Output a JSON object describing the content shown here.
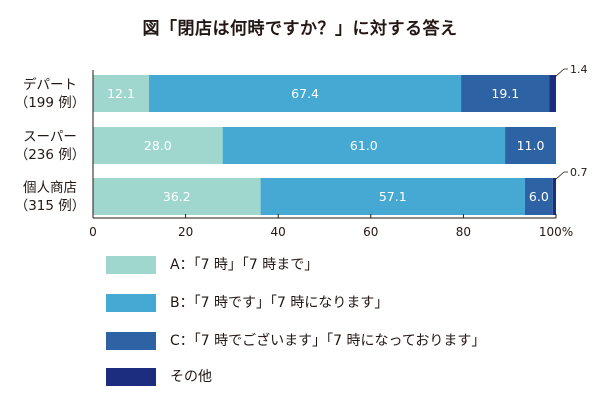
{
  "chart_data": {
    "type": "bar",
    "orientation": "horizontal",
    "stacked": true,
    "title": "図「閉店は何時ですか？」に対する答え",
    "categories": [
      {
        "name": "デパート",
        "n": "（199 例）"
      },
      {
        "name": "スーパー",
        "n": "（236 例）"
      },
      {
        "name": "個人商店",
        "n": "（315 例）"
      }
    ],
    "series": [
      {
        "name": "A：「7 時」「7 時まで」",
        "color": "#9fd7cf",
        "values": [
          12.1,
          28.0,
          36.2
        ],
        "labels": [
          "12.1",
          "28.0",
          "36.2"
        ]
      },
      {
        "name": "B：「7 時です」「7 時になります」",
        "color": "#45a9d4",
        "values": [
          67.4,
          61.0,
          57.1
        ],
        "labels": [
          "67.4",
          "61.0",
          "57.1"
        ]
      },
      {
        "name": "C：「7 時でございます」「7 時になっております」",
        "color": "#2d62a4",
        "values": [
          19.1,
          11.0,
          6.0
        ],
        "labels": [
          "19.1",
          "11.0",
          "6.0"
        ]
      },
      {
        "name": "その他",
        "color": "#1c2c7e",
        "values": [
          1.4,
          0.0,
          0.7
        ],
        "labels": [
          "1.4",
          "",
          "0.7"
        ]
      }
    ],
    "xlim": [
      0,
      100
    ],
    "xticks": [
      "0",
      "20",
      "40",
      "60",
      "80",
      "100%"
    ],
    "legend_position": "bottom"
  }
}
